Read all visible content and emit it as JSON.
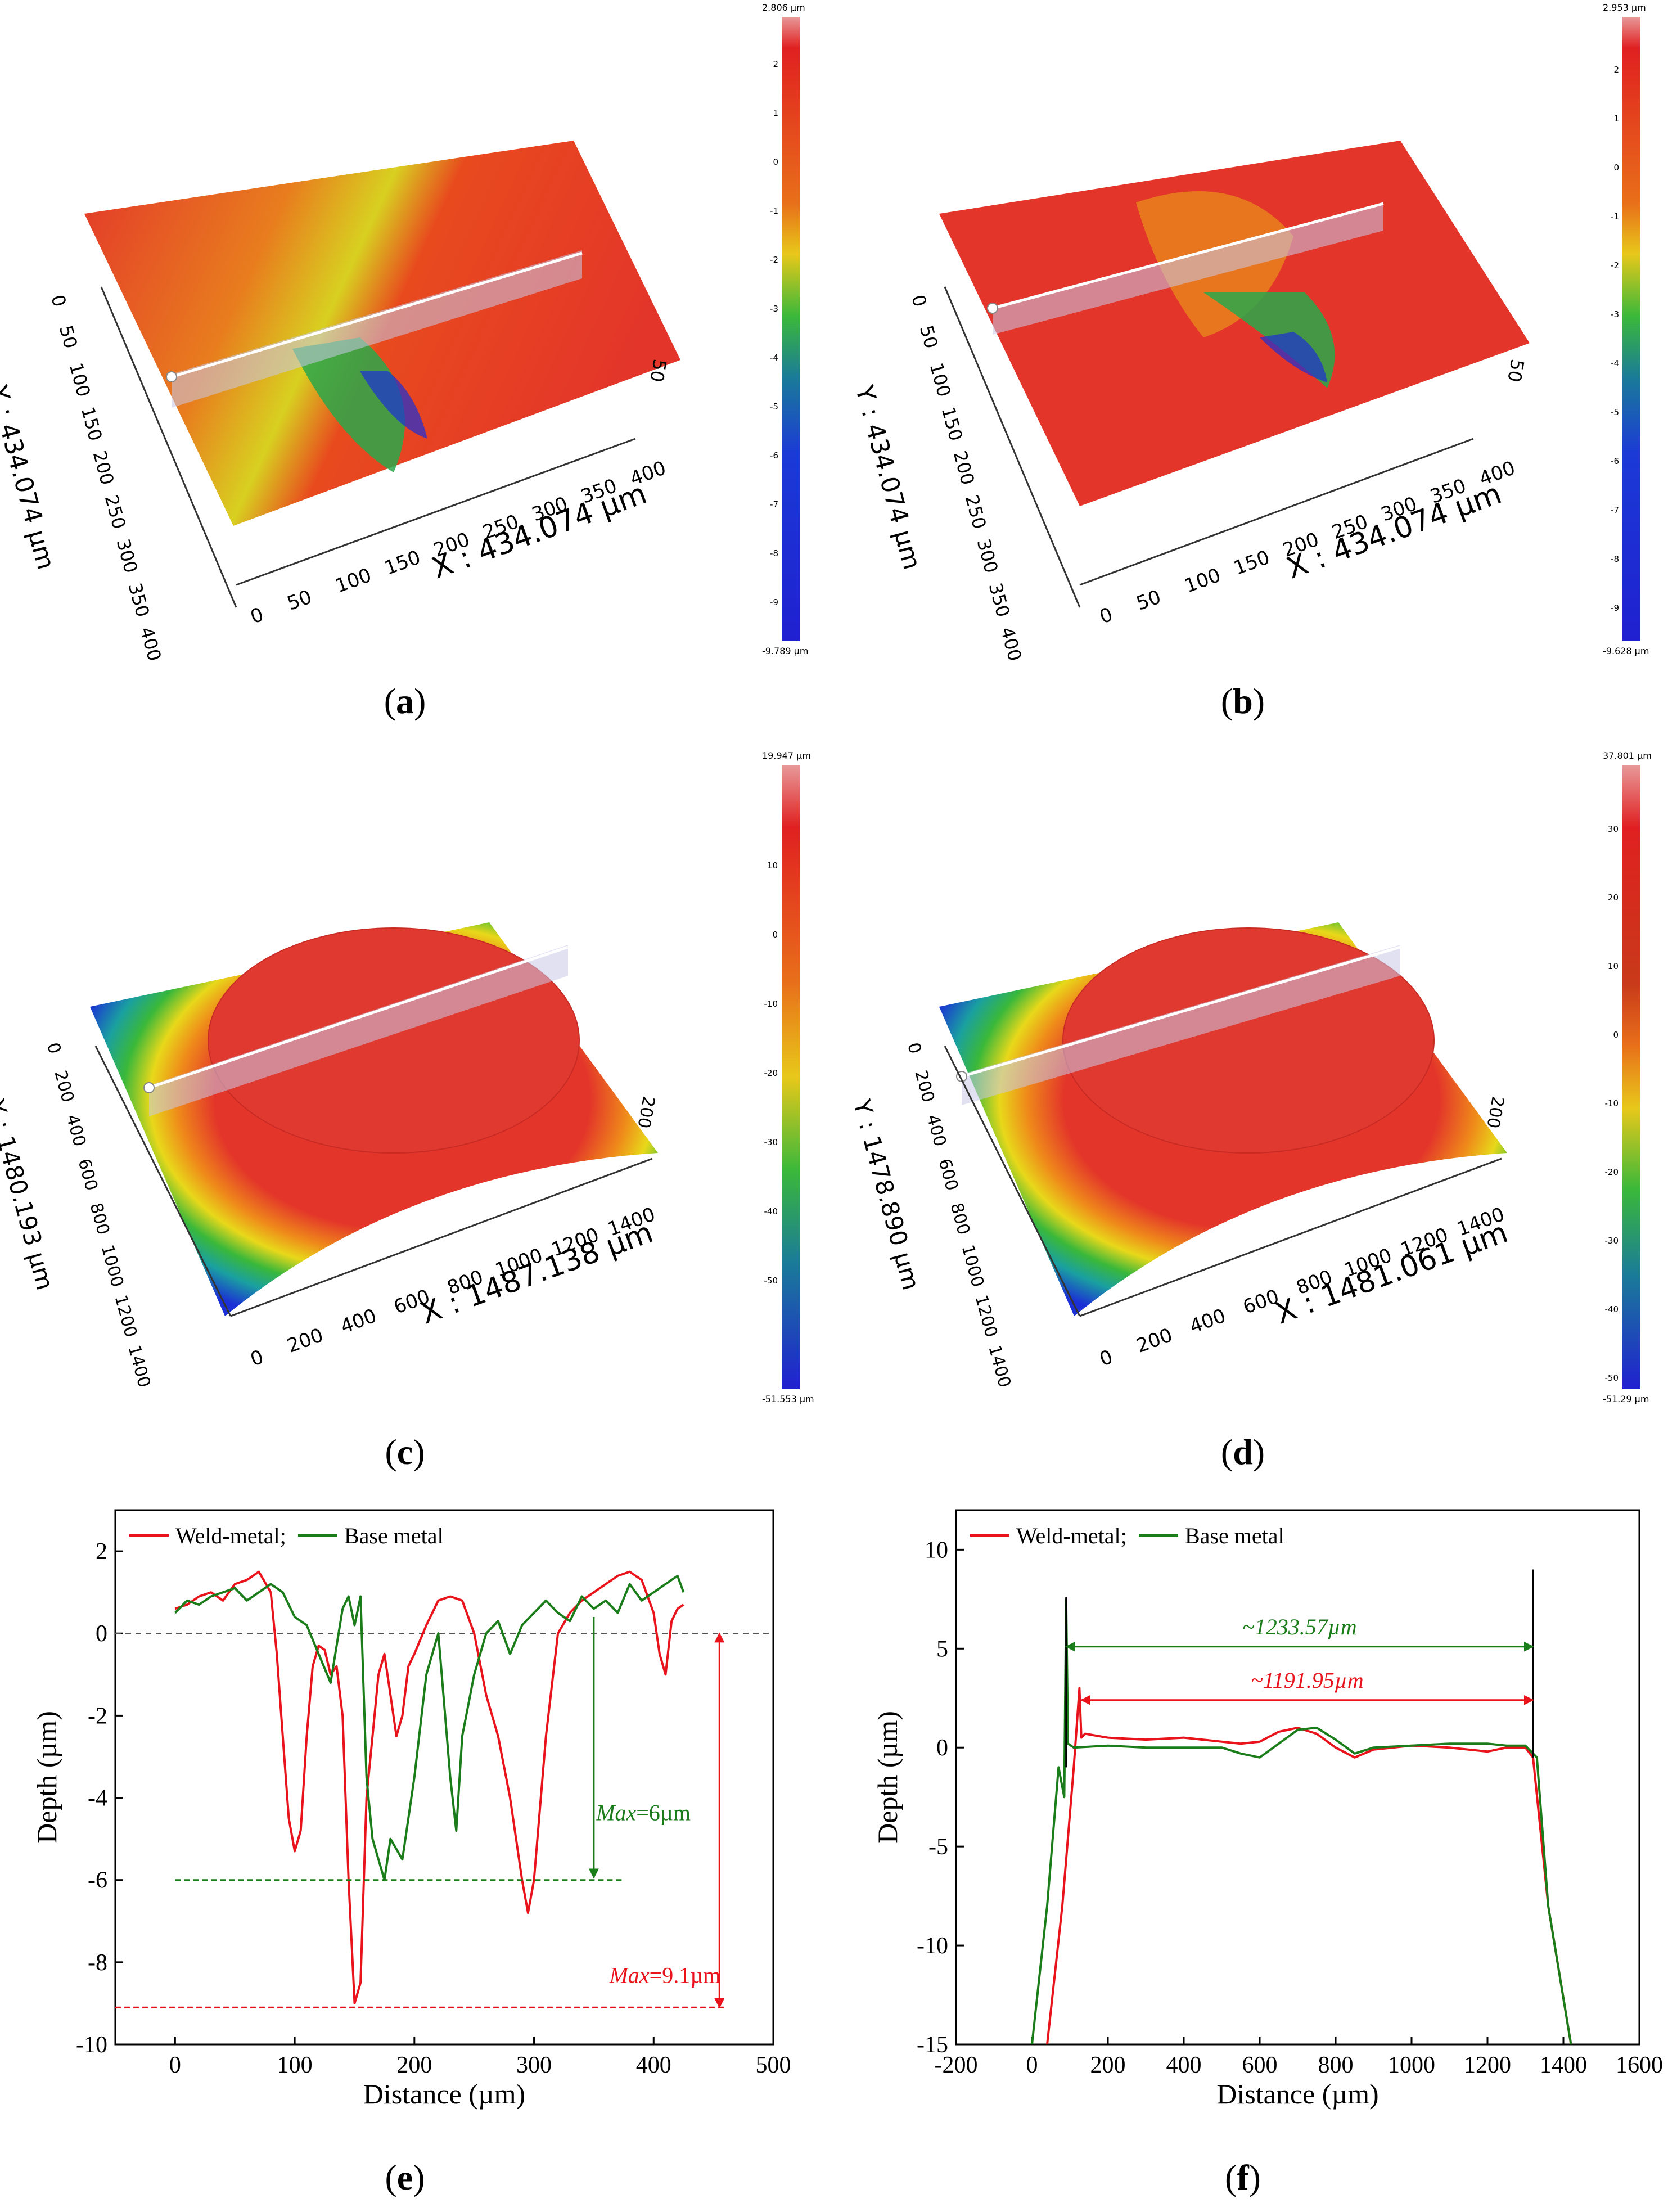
{
  "captions": [
    "a",
    "b",
    "c",
    "d",
    "e",
    "f"
  ],
  "surface_panels": [
    {
      "id": "a",
      "x_label": "X : 434.074 µm",
      "y_label": "Y : 434.074 µm",
      "x_ticks": [
        "0",
        "50",
        "100",
        "150",
        "200",
        "250",
        "300",
        "350",
        "400"
      ],
      "y_ticks": [
        "0",
        "50",
        "100",
        "150",
        "200",
        "250",
        "300",
        "350",
        "400"
      ],
      "side_tick": "50",
      "scale_max": "2.806 µm",
      "scale_min": "-9.789 µm",
      "scale_ticks": [
        "2",
        "1",
        "0",
        "-1",
        "-2",
        "-3",
        "-4",
        "-5",
        "-6",
        "-7",
        "-8",
        "-9"
      ]
    },
    {
      "id": "b",
      "x_label": "X : 434.074 µm",
      "y_label": "Y : 434.074 µm",
      "x_ticks": [
        "0",
        "50",
        "100",
        "150",
        "200",
        "250",
        "300",
        "350",
        "400"
      ],
      "y_ticks": [
        "0",
        "50",
        "100",
        "150",
        "200",
        "250",
        "300",
        "350",
        "400"
      ],
      "side_tick": "50",
      "scale_max": "2.953 µm",
      "scale_min": "-9.628 µm",
      "scale_ticks": [
        "2",
        "1",
        "0",
        "-1",
        "-2",
        "-3",
        "-4",
        "-5",
        "-6",
        "-7",
        "-8",
        "-9"
      ]
    },
    {
      "id": "c",
      "x_label": "X : 1487.138 µm",
      "y_label": "Y : 1480.193 µm",
      "x_ticks": [
        "0",
        "200",
        "400",
        "600",
        "800",
        "1000",
        "1200",
        "1400"
      ],
      "y_ticks": [
        "0",
        "200",
        "400",
        "600",
        "800",
        "1000",
        "1200",
        "1400"
      ],
      "side_tick": "200",
      "scale_max": "19.947 µm",
      "scale_min": "-51.553 µm",
      "scale_ticks": [
        "10",
        "0",
        "-10",
        "-20",
        "-30",
        "-40",
        "-50"
      ]
    },
    {
      "id": "d",
      "x_label": "X : 1481.061 µm",
      "y_label": "Y : 1478.890 µm",
      "x_ticks": [
        "0",
        "200",
        "400",
        "600",
        "800",
        "1000",
        "1200",
        "1400"
      ],
      "y_ticks": [
        "0",
        "200",
        "400",
        "600",
        "800",
        "1000",
        "1200",
        "1400"
      ],
      "side_tick": "200",
      "scale_max": "37.801 µm",
      "scale_min": "-51.29 µm",
      "scale_ticks": [
        "30",
        "20",
        "10",
        "0",
        "-10",
        "-20",
        "-30",
        "-40",
        "-50"
      ]
    }
  ],
  "colors": {
    "weld": "#e8131b",
    "base": "#1a7d1a",
    "surface_high": "#e3352a",
    "surface_low": "#1b2fd6"
  },
  "chart_data": [
    {
      "id": "e",
      "type": "line",
      "xlabel": "Distance (µm)",
      "ylabel": "Depth (µm)",
      "xlim": [
        -50,
        500
      ],
      "ylim": [
        -10,
        3
      ],
      "x_ticks": [
        0,
        100,
        200,
        300,
        400,
        500
      ],
      "y_ticks": [
        -10,
        -8,
        -6,
        -4,
        -2,
        0,
        2
      ],
      "legend": "top-left",
      "legend_text": [
        "Weld-metal;",
        "Base metal"
      ],
      "zero_line": 0,
      "series": [
        {
          "name": "Weld-metal",
          "x": [
            0,
            10,
            20,
            30,
            40,
            50,
            60,
            70,
            80,
            85,
            90,
            95,
            100,
            105,
            110,
            115,
            120,
            125,
            130,
            135,
            140,
            145,
            150,
            155,
            160,
            165,
            170,
            175,
            180,
            185,
            190,
            195,
            200,
            210,
            220,
            230,
            240,
            250,
            260,
            270,
            280,
            290,
            295,
            300,
            310,
            320,
            330,
            340,
            350,
            360,
            370,
            380,
            390,
            400,
            405,
            410,
            415,
            420,
            425
          ],
          "y": [
            0.6,
            0.7,
            0.9,
            1.0,
            0.8,
            1.2,
            1.3,
            1.5,
            1.0,
            -0.5,
            -2.5,
            -4.5,
            -5.3,
            -4.8,
            -2.5,
            -0.8,
            -0.3,
            -0.4,
            -1.0,
            -0.8,
            -2.0,
            -6.0,
            -9.0,
            -8.5,
            -4.0,
            -2.5,
            -1.0,
            -0.5,
            -1.5,
            -2.5,
            -2.0,
            -0.8,
            -0.5,
            0.2,
            0.8,
            0.9,
            0.8,
            0.0,
            -1.5,
            -2.5,
            -4.0,
            -6.0,
            -6.8,
            -6.0,
            -2.5,
            0.0,
            0.5,
            0.8,
            1.0,
            1.2,
            1.4,
            1.5,
            1.3,
            0.5,
            -0.5,
            -1.0,
            0.3,
            0.6,
            0.7
          ]
        },
        {
          "name": "Base metal",
          "x": [
            0,
            10,
            20,
            30,
            40,
            50,
            60,
            70,
            80,
            90,
            100,
            110,
            120,
            130,
            140,
            145,
            150,
            155,
            160,
            165,
            170,
            175,
            180,
            190,
            200,
            210,
            220,
            230,
            235,
            240,
            250,
            260,
            270,
            280,
            290,
            300,
            310,
            320,
            330,
            340,
            350,
            360,
            370,
            380,
            390,
            400,
            410,
            420,
            425
          ],
          "y": [
            0.5,
            0.8,
            0.7,
            0.9,
            1.0,
            1.1,
            0.8,
            1.0,
            1.2,
            1.0,
            0.4,
            0.2,
            -0.5,
            -1.2,
            0.6,
            0.9,
            0.2,
            0.9,
            -3.5,
            -5.0,
            -5.5,
            -6.0,
            -5.0,
            -5.5,
            -3.5,
            -1.0,
            0.0,
            -3.5,
            -4.8,
            -2.5,
            -1.0,
            0.0,
            0.3,
            -0.5,
            0.2,
            0.5,
            0.8,
            0.5,
            0.3,
            0.9,
            0.6,
            0.8,
            0.5,
            1.2,
            0.8,
            1.0,
            1.2,
            1.4,
            1.0
          ]
        }
      ],
      "annotations": [
        {
          "text": "Max",
          "value_text": "=6µm",
          "value": -6,
          "color": "base"
        },
        {
          "text": "Max",
          "value_text": "=9.1µm",
          "value": -9.1,
          "color": "weld"
        }
      ]
    },
    {
      "id": "f",
      "type": "line",
      "xlabel": "Distance (µm)",
      "ylabel": "Depth (µm)",
      "xlim": [
        -200,
        1600
      ],
      "ylim": [
        -15,
        12
      ],
      "x_ticks": [
        -200,
        0,
        200,
        400,
        600,
        800,
        1000,
        1200,
        1400,
        1600
      ],
      "y_ticks": [
        -15,
        -10,
        -5,
        0,
        5,
        10
      ],
      "legend": "top-left",
      "legend_text": [
        "Weld-metal;",
        "Base metal"
      ],
      "series": [
        {
          "name": "Weld-metal",
          "x": [
            40,
            80,
            110,
            125,
            130,
            140,
            200,
            300,
            400,
            500,
            550,
            600,
            650,
            700,
            750,
            800,
            850,
            900,
            1000,
            1100,
            1200,
            1250,
            1300,
            1320,
            1360,
            1420
          ],
          "y": [
            -15,
            -8,
            -1.0,
            3.0,
            0.5,
            0.7,
            0.5,
            0.4,
            0.5,
            0.3,
            0.2,
            0.3,
            0.8,
            1.0,
            0.7,
            0.0,
            -0.5,
            -0.1,
            0.1,
            0.0,
            -0.2,
            0.0,
            0.0,
            -0.5,
            -8,
            -15
          ]
        },
        {
          "name": "Base metal",
          "x": [
            0,
            40,
            70,
            85,
            90,
            95,
            110,
            200,
            300,
            400,
            500,
            550,
            600,
            650,
            700,
            750,
            800,
            850,
            900,
            1000,
            1100,
            1200,
            1250,
            1300,
            1330,
            1360,
            1420
          ],
          "y": [
            -15,
            -8,
            -1.0,
            -2.5,
            7.5,
            0.2,
            0.0,
            0.1,
            0.0,
            0.0,
            0.0,
            -0.3,
            -0.5,
            0.2,
            0.9,
            1.0,
            0.4,
            -0.3,
            0.0,
            0.1,
            0.2,
            0.2,
            0.1,
            0.1,
            -0.5,
            -8,
            -15
          ]
        }
      ],
      "annotations": [
        {
          "text": "~1233.57µm",
          "from": 90,
          "to": 1320,
          "y": 5.1,
          "color": "base"
        },
        {
          "text": "~1191.95µm",
          "from": 130,
          "to": 1320,
          "y": 2.4,
          "color": "weld"
        }
      ]
    }
  ]
}
